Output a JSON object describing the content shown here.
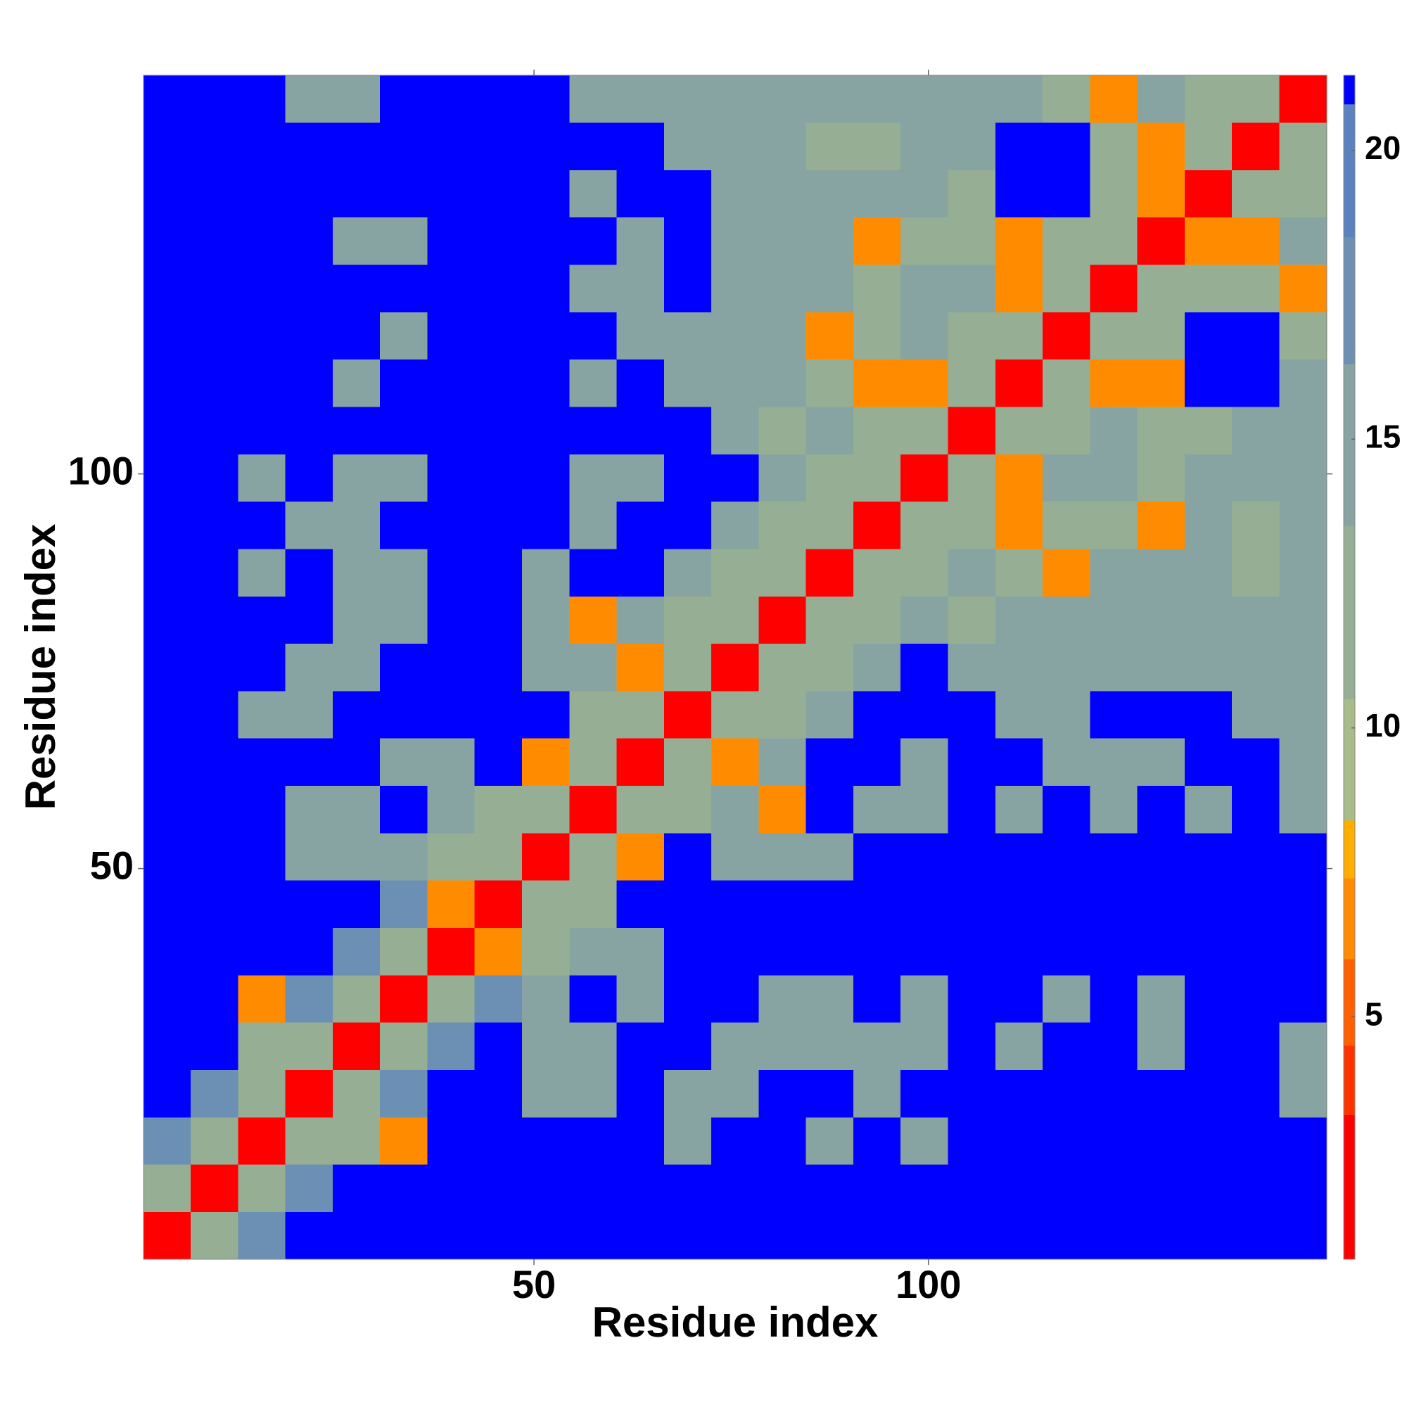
{
  "chart_data": {
    "type": "heatmap",
    "xlabel": "Residue index",
    "ylabel": "Residue index",
    "xlim": [
      0.5,
      150.5
    ],
    "ylim": [
      0.5,
      150.5
    ],
    "xticks": [
      50,
      100
    ],
    "yticks": [
      50,
      100
    ],
    "bins": [
      0.5,
      6.5,
      12.5,
      18.5,
      24.5,
      30.5,
      36.5,
      42.5,
      48.5,
      54.5,
      60.5,
      66.5,
      72.5,
      78.5,
      84.5,
      90.5,
      96.5,
      102.5,
      108.5,
      114.5,
      120.5,
      126.5,
      132.5,
      138.5,
      144.5,
      150.5
    ],
    "zlim": [
      0.8,
      21.3
    ],
    "colorbar_ticks": [
      5,
      10,
      15,
      20
    ],
    "colorbands": [
      {
        "from": 0.8,
        "color": "#ff0000"
      },
      {
        "from": 3.3,
        "color": "#ff3300"
      },
      {
        "from": 4.5,
        "color": "#ff6000"
      },
      {
        "from": 6.0,
        "color": "#ff8c00"
      },
      {
        "from": 7.4,
        "color": "#ffae00"
      },
      {
        "from": 8.4,
        "color": "#a8bc8a"
      },
      {
        "from": 10.5,
        "color": "#96ae94"
      },
      {
        "from": 13.5,
        "color": "#88a4a2"
      },
      {
        "from": 16.3,
        "color": "#6b90b4"
      },
      {
        "from": 18.5,
        "color": "#5a82c0"
      },
      {
        "from": 20.8,
        "color": "#0000ff"
      }
    ],
    "z": [
      [
        3,
        11,
        17,
        21,
        21,
        21,
        21,
        21,
        21,
        21,
        21,
        21,
        21,
        21,
        21,
        21,
        21,
        21,
        21,
        21,
        21,
        21,
        21,
        21,
        21
      ],
      [
        11,
        3,
        11,
        17,
        21,
        21,
        21,
        21,
        21,
        21,
        21,
        21,
        21,
        21,
        21,
        21,
        21,
        21,
        21,
        21,
        21,
        21,
        21,
        21,
        21
      ],
      [
        17,
        11,
        3,
        11,
        11,
        7,
        21,
        21,
        21,
        21,
        21,
        15,
        21,
        21,
        15,
        21,
        15,
        21,
        21,
        21,
        21,
        21,
        21,
        21,
        21
      ],
      [
        21,
        17,
        11,
        3,
        11,
        17,
        21,
        21,
        14,
        15,
        21,
        15,
        15,
        21,
        21,
        15,
        21,
        21,
        21,
        21,
        21,
        21,
        21,
        21,
        15
      ],
      [
        21,
        21,
        11,
        11,
        3,
        11,
        17,
        21,
        14,
        15,
        21,
        21,
        15,
        15,
        15,
        15,
        15,
        21,
        15,
        21,
        21,
        15,
        21,
        21,
        15
      ],
      [
        21,
        21,
        7,
        17,
        11,
        3,
        11,
        17,
        14,
        21,
        15,
        21,
        21,
        15,
        15,
        21,
        15,
        21,
        21,
        15,
        21,
        15,
        21,
        21,
        21
      ],
      [
        21,
        21,
        21,
        21,
        17,
        11,
        3,
        7,
        13,
        14,
        14,
        21,
        21,
        21,
        21,
        21,
        21,
        21,
        21,
        21,
        21,
        21,
        21,
        21,
        21
      ],
      [
        21,
        21,
        21,
        21,
        21,
        17,
        7,
        3,
        11,
        13,
        21,
        21,
        21,
        21,
        21,
        21,
        21,
        21,
        21,
        21,
        21,
        21,
        21,
        21,
        21
      ],
      [
        21,
        21,
        21,
        14,
        14,
        14,
        13,
        11,
        3,
        11,
        7,
        21,
        14,
        14,
        15,
        21,
        21,
        21,
        21,
        21,
        21,
        21,
        21,
        21,
        21
      ],
      [
        21,
        21,
        21,
        15,
        15,
        21,
        14,
        13,
        11,
        3,
        11,
        13,
        14,
        7,
        21,
        15,
        15,
        21,
        15,
        21,
        15,
        21,
        15,
        21,
        15
      ],
      [
        21,
        21,
        21,
        21,
        21,
        15,
        14,
        21,
        7,
        11,
        3,
        11,
        7,
        14,
        21,
        21,
        15,
        21,
        21,
        15,
        15,
        15,
        21,
        21,
        15
      ],
      [
        21,
        21,
        15,
        15,
        21,
        21,
        21,
        21,
        21,
        13,
        11,
        3,
        11,
        13,
        14,
        21,
        21,
        21,
        15,
        15,
        21,
        21,
        21,
        15,
        15
      ],
      [
        21,
        21,
        21,
        15,
        15,
        21,
        21,
        21,
        14,
        14,
        7,
        11,
        3,
        11,
        13,
        14,
        21,
        14,
        14,
        14,
        14,
        15,
        15,
        15,
        14
      ],
      [
        21,
        21,
        21,
        21,
        15,
        15,
        21,
        21,
        14,
        7,
        14,
        13,
        11,
        3,
        11,
        13,
        14,
        13,
        14,
        14,
        14,
        14,
        14,
        14,
        15
      ],
      [
        21,
        21,
        15,
        21,
        15,
        15,
        21,
        21,
        15,
        21,
        21,
        14,
        13,
        11,
        3,
        11,
        13,
        14,
        13,
        7,
        14,
        14,
        14,
        13,
        14
      ],
      [
        21,
        21,
        21,
        15,
        15,
        21,
        21,
        21,
        21,
        15,
        21,
        21,
        14,
        13,
        11,
        3,
        11,
        13,
        7,
        13,
        13,
        7,
        14,
        13,
        15
      ],
      [
        21,
        21,
        15,
        21,
        15,
        15,
        21,
        21,
        21,
        15,
        15,
        21,
        21,
        14,
        13,
        11,
        3,
        11,
        7,
        14,
        14,
        13,
        15,
        14,
        14
      ],
      [
        21,
        21,
        21,
        21,
        21,
        21,
        21,
        21,
        21,
        21,
        21,
        21,
        14,
        13,
        14,
        13,
        11,
        3,
        11,
        13,
        14,
        13,
        13,
        14,
        14
      ],
      [
        21,
        21,
        21,
        21,
        15,
        21,
        21,
        21,
        21,
        15,
        21,
        15,
        14,
        14,
        13,
        7,
        7,
        11,
        3,
        11,
        7,
        7,
        21,
        21,
        14
      ],
      [
        21,
        21,
        21,
        21,
        21,
        15,
        21,
        21,
        21,
        21,
        15,
        15,
        14,
        14,
        7,
        13,
        14,
        13,
        11,
        3,
        11,
        13,
        21,
        21,
        13
      ],
      [
        21,
        21,
        21,
        21,
        21,
        21,
        21,
        21,
        21,
        15,
        15,
        21,
        14,
        14,
        14,
        13,
        14,
        14,
        7,
        11,
        3,
        11,
        13,
        13,
        7
      ],
      [
        21,
        21,
        21,
        21,
        15,
        15,
        21,
        21,
        21,
        21,
        15,
        21,
        15,
        14,
        14,
        7,
        13,
        13,
        7,
        13,
        11,
        3,
        7,
        7,
        14
      ],
      [
        21,
        21,
        21,
        21,
        21,
        21,
        21,
        21,
        21,
        15,
        21,
        21,
        15,
        14,
        14,
        14,
        15,
        13,
        21,
        21,
        13,
        7,
        3,
        11,
        13
      ],
      [
        21,
        21,
        21,
        21,
        21,
        21,
        21,
        21,
        21,
        21,
        21,
        15,
        15,
        14,
        13,
        13,
        14,
        14,
        21,
        21,
        13,
        7,
        11,
        3,
        11
      ],
      [
        21,
        21,
        21,
        15,
        15,
        21,
        21,
        21,
        21,
        15,
        15,
        15,
        14,
        15,
        14,
        15,
        14,
        14,
        14,
        13,
        7,
        14,
        13,
        11,
        3
      ]
    ]
  }
}
